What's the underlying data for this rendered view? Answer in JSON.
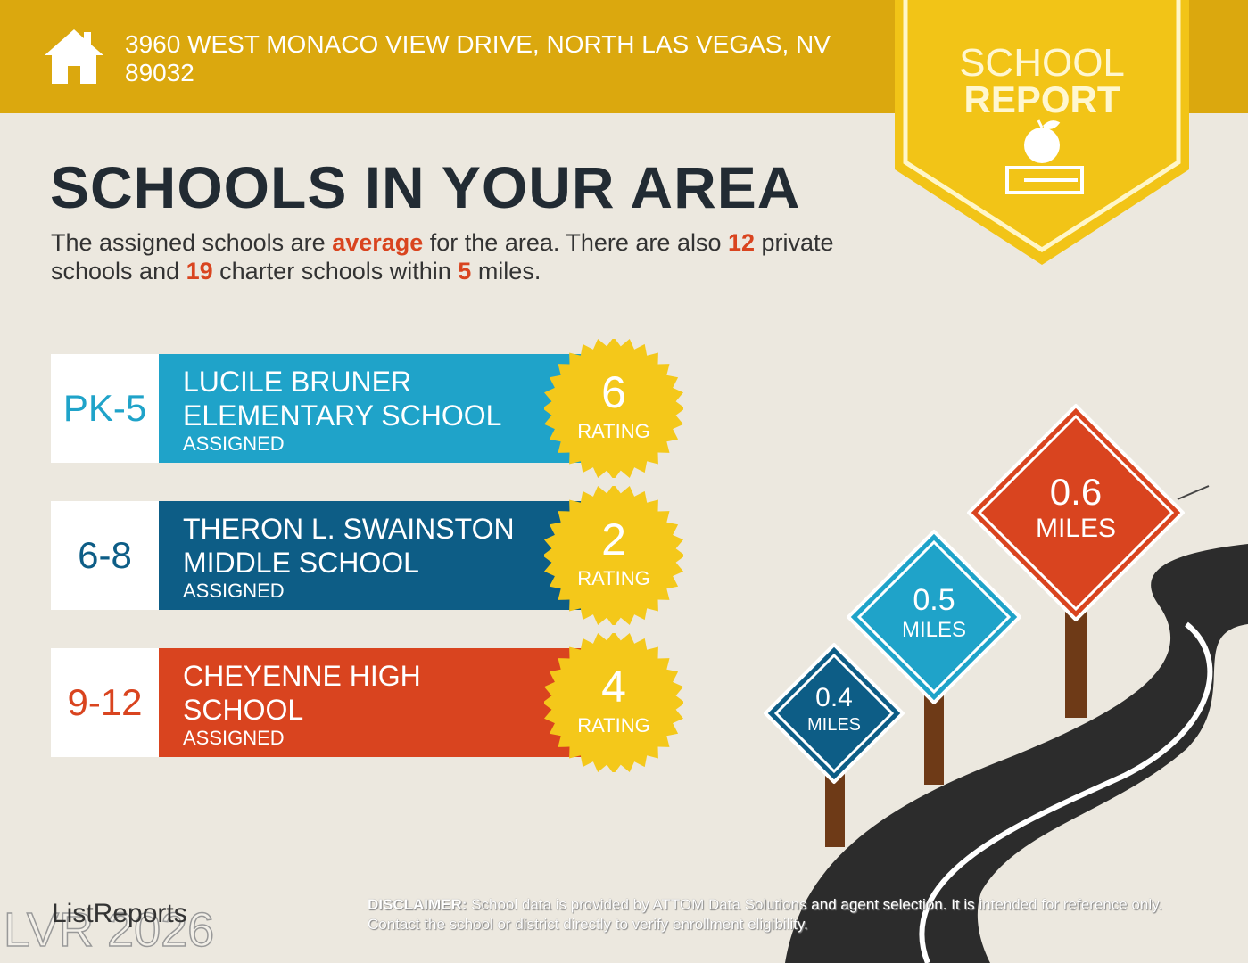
{
  "header": {
    "address": "3960 WEST MONACO VIEW DRIVE, NORTH LAS VEGAS, NV 89032",
    "icon": "house-icon",
    "color": "#dba80e"
  },
  "badge": {
    "line1": "SCHOOL",
    "line2": "REPORT",
    "icon": "apple-on-book-icon"
  },
  "title": "SCHOOLS IN YOUR AREA",
  "intro": {
    "p1": "The assigned schools are ",
    "quality": "average",
    "p2": " for the area. There are also ",
    "private": "12",
    "p3": " private schools and ",
    "charter": "19",
    "p4": " charter schools within ",
    "miles": "5",
    "p5": " miles."
  },
  "schools": [
    {
      "grade": "PK-5",
      "name1": "LUCILE BRUNER",
      "name2": "ELEMENTARY SCHOOL",
      "status": "ASSIGNED",
      "rating": "6",
      "rating_label": "RATING",
      "color": "#1fa3c9",
      "distance": "0.6",
      "unit": "MILES"
    },
    {
      "grade": "6-8",
      "name1": "THERON L. SWAINSTON",
      "name2": "MIDDLE SCHOOL",
      "status": "ASSIGNED",
      "rating": "2",
      "rating_label": "RATING",
      "color": "#0d5d86",
      "distance": "0.5",
      "unit": "MILES"
    },
    {
      "grade": "9-12",
      "name1": "CHEYENNE HIGH",
      "name2": "SCHOOL",
      "status": "ASSIGNED",
      "rating": "4",
      "rating_label": "RATING",
      "color": "#d9441f",
      "distance": "0.4",
      "unit": "MILES"
    }
  ],
  "signs": [
    {
      "distance": "0.6",
      "unit": "MILES",
      "color": "#d9441f"
    },
    {
      "distance": "0.5",
      "unit": "MILES",
      "color": "#1fa3c9"
    },
    {
      "distance": "0.4",
      "unit": "MILES",
      "color": "#0d5d86"
    }
  ],
  "footer": {
    "logo": "ListReports",
    "disclaimer_label": "DISCLAIMER:",
    "disclaimer": " School data is provided by ATTOM Data Solutions and agent selection. It is intended for reference only. Contact the school or district directly to verify enrollment eligibility.",
    "watermark": "LVR 2026"
  },
  "seal_color": "#f4c81a"
}
